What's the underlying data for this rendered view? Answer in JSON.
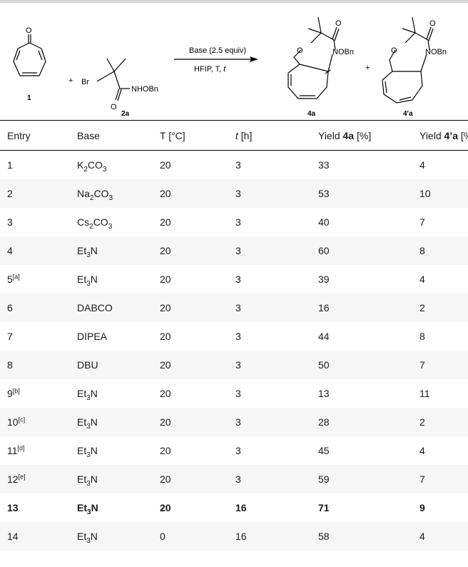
{
  "scheme": {
    "compound1_label": "1",
    "compound2a_label": "2a",
    "product4a_label": "4a",
    "product4pa_label": "4'a",
    "plus": "+",
    "arrow_top": "Base (2.5 equiv)",
    "arrow_bottom_prefix": "HFIP, T, ",
    "arrow_bottom_t": "t",
    "atom_O": "O",
    "atom_Br": "Br",
    "group_NHOBn": "NHOBn",
    "group_NOBn": "NOBn"
  },
  "table": {
    "headers": {
      "entry": "Entry",
      "base": "Base",
      "temp": "T [°C]",
      "time_t": "t",
      "time_unit": " [h]",
      "yield_prefix": "Yield ",
      "yield4a": "4a",
      "yield4pa": "4’a",
      "unit": " [%]"
    },
    "rows": [
      {
        "entry": "1",
        "note": "",
        "base": "K",
        "base_sub": "2",
        "base_rest": "CO",
        "base_sub2": "3",
        "temp": "20",
        "time": "3",
        "y4a": "33",
        "y4pa": "4"
      },
      {
        "entry": "2",
        "note": "",
        "base": "Na",
        "base_sub": "2",
        "base_rest": "CO",
        "base_sub2": "3",
        "temp": "20",
        "time": "3",
        "y4a": "53",
        "y4pa": "10"
      },
      {
        "entry": "3",
        "note": "",
        "base": "Cs",
        "base_sub": "2",
        "base_rest": "CO",
        "base_sub2": "3",
        "temp": "20",
        "time": "3",
        "y4a": "40",
        "y4pa": "7"
      },
      {
        "entry": "4",
        "note": "",
        "base": "Et",
        "base_sub": "3",
        "base_rest": "N",
        "base_sub2": "",
        "temp": "20",
        "time": "3",
        "y4a": "60",
        "y4pa": "8"
      },
      {
        "entry": "5",
        "note": "[a]",
        "base": "Et",
        "base_sub": "3",
        "base_rest": "N",
        "base_sub2": "",
        "temp": "20",
        "time": "3",
        "y4a": "39",
        "y4pa": "4"
      },
      {
        "entry": "6",
        "note": "",
        "base": "DABCO",
        "base_sub": "",
        "base_rest": "",
        "base_sub2": "",
        "temp": "20",
        "time": "3",
        "y4a": "16",
        "y4pa": "2"
      },
      {
        "entry": "7",
        "note": "",
        "base": "DIPEA",
        "base_sub": "",
        "base_rest": "",
        "base_sub2": "",
        "temp": "20",
        "time": "3",
        "y4a": "44",
        "y4pa": "8"
      },
      {
        "entry": "8",
        "note": "",
        "base": "DBU",
        "base_sub": "",
        "base_rest": "",
        "base_sub2": "",
        "temp": "20",
        "time": "3",
        "y4a": "50",
        "y4pa": "7"
      },
      {
        "entry": "9",
        "note": "[b]",
        "base": "Et",
        "base_sub": "3",
        "base_rest": "N",
        "base_sub2": "",
        "temp": "20",
        "time": "3",
        "y4a": "13",
        "y4pa": "11"
      },
      {
        "entry": "10",
        "note": "[c]",
        "base": "Et",
        "base_sub": "3",
        "base_rest": "N",
        "base_sub2": "",
        "temp": "20",
        "time": "3",
        "y4a": "28",
        "y4pa": "2"
      },
      {
        "entry": "11",
        "note": "[d]",
        "base": "Et",
        "base_sub": "3",
        "base_rest": "N",
        "base_sub2": "",
        "temp": "20",
        "time": "3",
        "y4a": "45",
        "y4pa": "4"
      },
      {
        "entry": "12",
        "note": "[e]",
        "base": "Et",
        "base_sub": "3",
        "base_rest": "N",
        "base_sub2": "",
        "temp": "20",
        "time": "3",
        "y4a": "59",
        "y4pa": "7"
      },
      {
        "entry": "13",
        "note": "",
        "base": "Et",
        "base_sub": "3",
        "base_rest": "N",
        "base_sub2": "",
        "temp": "20",
        "time": "16",
        "y4a": "71",
        "y4pa": "9",
        "best": true
      },
      {
        "entry": "14",
        "note": "",
        "base": "Et",
        "base_sub": "3",
        "base_rest": "N",
        "base_sub2": "",
        "temp": "0",
        "time": "16",
        "y4a": "58",
        "y4pa": "4"
      }
    ]
  }
}
